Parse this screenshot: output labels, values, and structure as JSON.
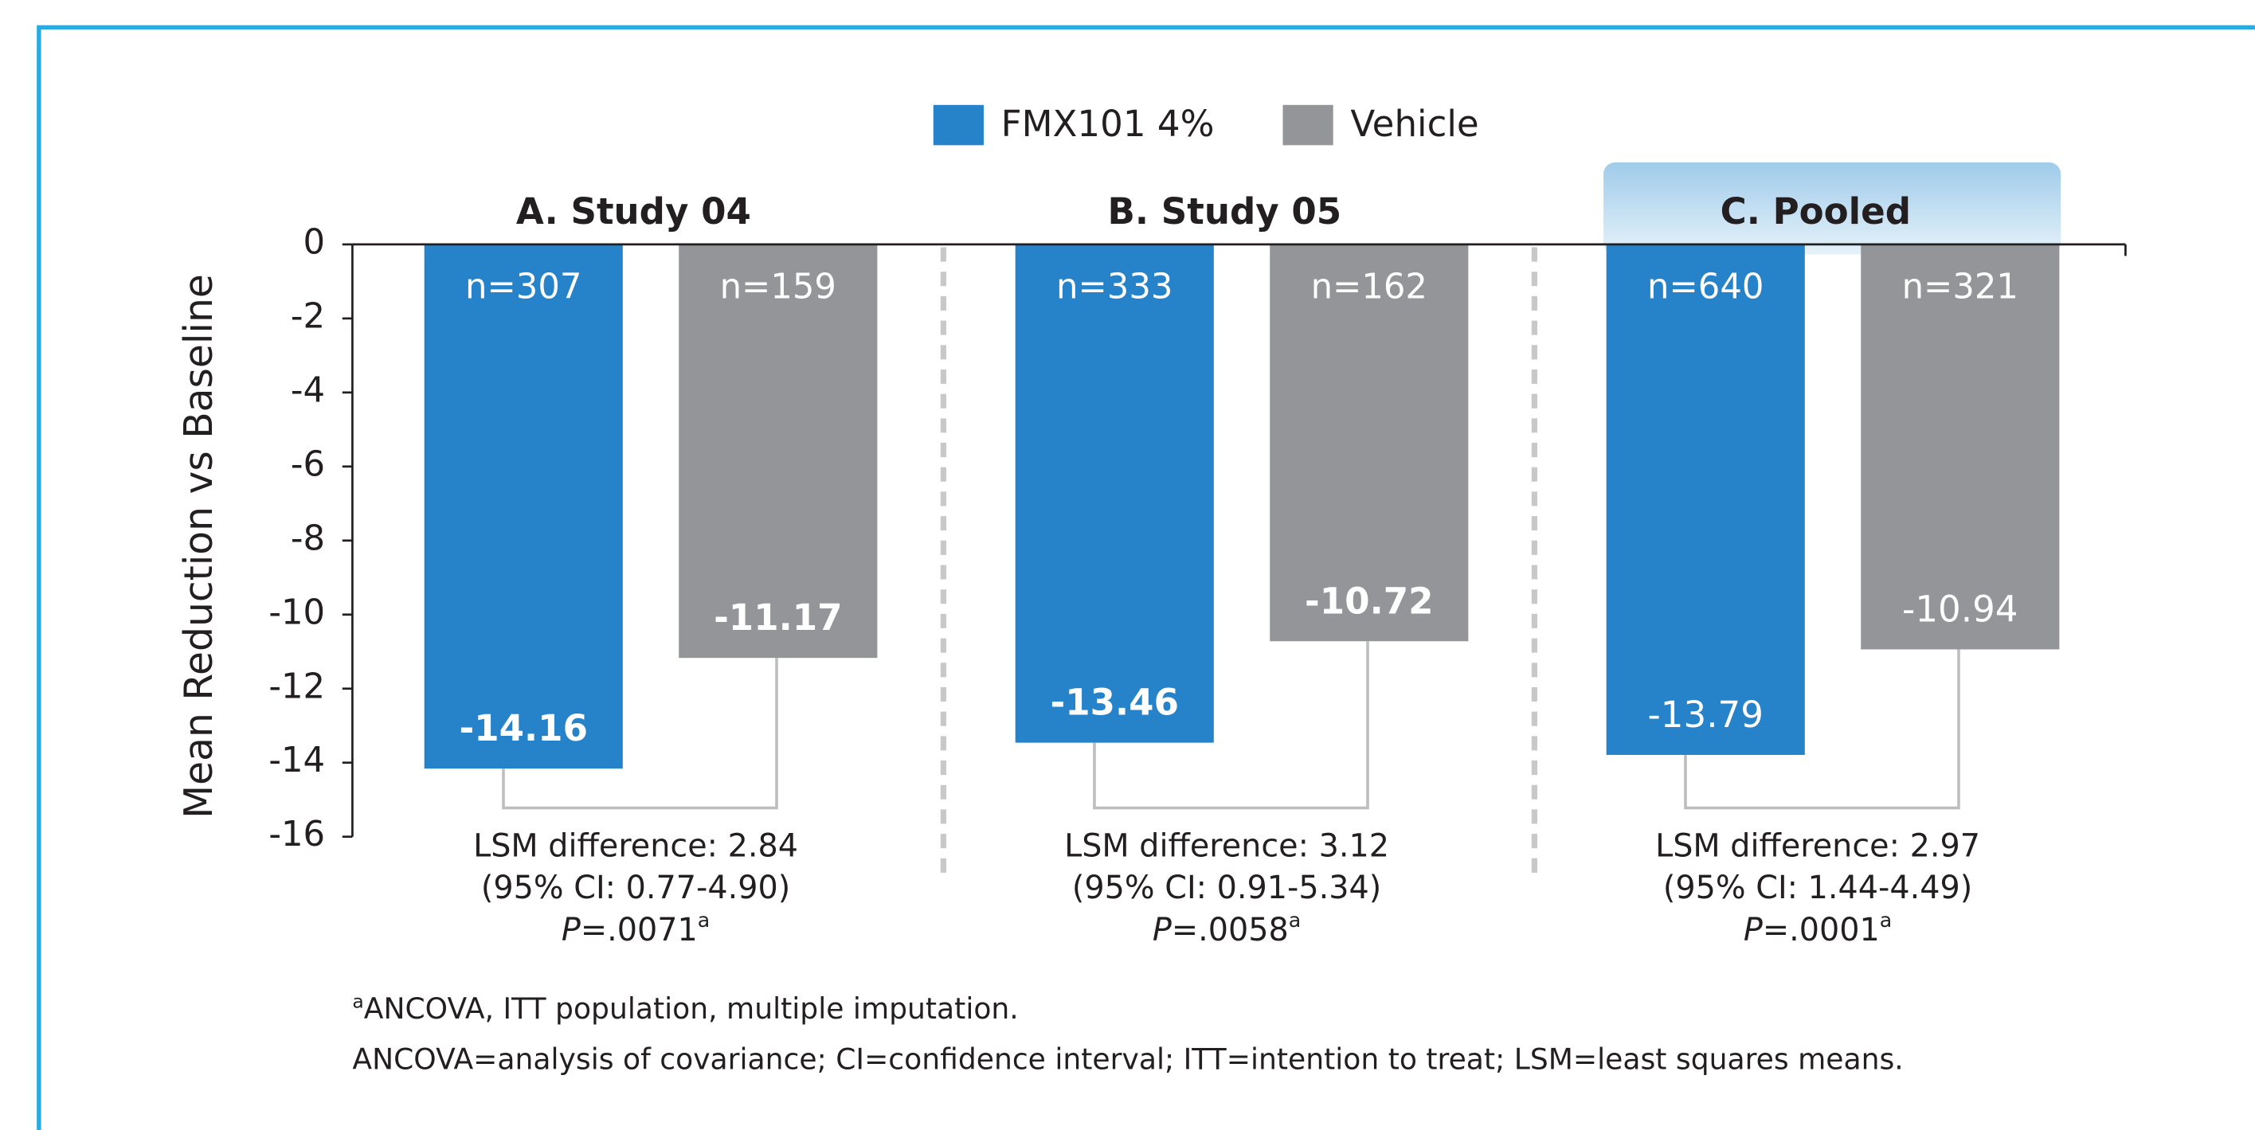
{
  "chart_data": {
    "type": "bar",
    "legend": "top",
    "y_label": "Mean Reduction vs Baseline",
    "categories": [
      "A. Study 04",
      "B. Study 05",
      "C. Pooled"
    ],
    "highlight_category": 2,
    "bold_value_labels": [
      true,
      true,
      false
    ],
    "series": [
      {
        "name": "FMX101 4%",
        "color": "#2783c9",
        "values": [
          -14.16,
          -13.46,
          -13.79
        ],
        "n_labels": [
          "n=307",
          "n=333",
          "n=640"
        ]
      },
      {
        "name": "Vehicle",
        "color": "#939598",
        "values": [
          -11.17,
          -10.72,
          -10.94
        ],
        "n_labels": [
          "n=159",
          "n=162",
          "n=321"
        ]
      }
    ],
    "ylim": [
      -16,
      0
    ],
    "yticks": [
      0,
      -2,
      -4,
      -6,
      -8,
      -10,
      -12,
      -14,
      -16
    ],
    "annotations": [
      {
        "lsm": "LSM difference: 2.84",
        "ci": "(95% CI: 0.77-4.90)",
        "p_label": "P",
        "p_value": "=.0071",
        "marker": "a"
      },
      {
        "lsm": "LSM difference: 3.12",
        "ci": "(95% CI: 0.91-5.34)",
        "p_label": "P",
        "p_value": "=.0058",
        "marker": "a"
      },
      {
        "lsm": "LSM difference: 2.97",
        "ci": "(95% CI: 1.44-4.49)",
        "p_label": "P",
        "p_value": "=.0001",
        "marker": "a"
      }
    ],
    "footnotes": [
      {
        "marker": "a",
        "text": "ANCOVA, ITT population, multiple imputation."
      },
      {
        "text": "ANCOVA=analysis of covariance; CI=confidence interval; ITT=intention to treat; LSM=least squares means."
      }
    ]
  }
}
